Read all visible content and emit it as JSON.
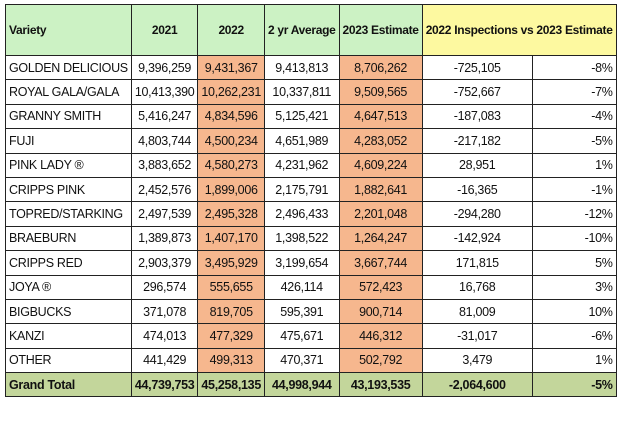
{
  "headers": {
    "variety": "Variety",
    "y2021": "2021",
    "y2022": "2022",
    "avg": "2 yr Average",
    "est2023": "2023 Estimate",
    "compare": "2022 Inspections vs 2023 Estimate"
  },
  "colors": {
    "header": "#ccf2c4",
    "compare_header": "#fdf9a0",
    "highlight": "#f6b78e",
    "total": "#c3d69b"
  },
  "rows": [
    {
      "variety": "GOLDEN DELICIOUS",
      "y2021": "9,396,259",
      "y2022": "9,431,367",
      "avg": "9,413,813",
      "est2023": "8,706,262",
      "diff": "-725,105",
      "pct": "-8%"
    },
    {
      "variety": "ROYAL GALA/GALA",
      "y2021": "10,413,390",
      "y2022": "10,262,231",
      "avg": "10,337,811",
      "est2023": "9,509,565",
      "diff": "-752,667",
      "pct": "-7%"
    },
    {
      "variety": "GRANNY SMITH",
      "y2021": "5,416,247",
      "y2022": "4,834,596",
      "avg": "5,125,421",
      "est2023": "4,647,513",
      "diff": "-187,083",
      "pct": "-4%"
    },
    {
      "variety": "FUJI",
      "y2021": "4,803,744",
      "y2022": "4,500,234",
      "avg": "4,651,989",
      "est2023": "4,283,052",
      "diff": "-217,182",
      "pct": "-5%"
    },
    {
      "variety": "PINK LADY ®",
      "y2021": "3,883,652",
      "y2022": "4,580,273",
      "avg": "4,231,962",
      "est2023": "4,609,224",
      "diff": "28,951",
      "pct": "1%"
    },
    {
      "variety": "CRIPPS PINK",
      "y2021": "2,452,576",
      "y2022": "1,899,006",
      "avg": "2,175,791",
      "est2023": "1,882,641",
      "diff": "-16,365",
      "pct": "-1%"
    },
    {
      "variety": "TOPRED/STARKING",
      "y2021": "2,497,539",
      "y2022": "2,495,328",
      "avg": "2,496,433",
      "est2023": "2,201,048",
      "diff": "-294,280",
      "pct": "-12%"
    },
    {
      "variety": "BRAEBURN",
      "y2021": "1,389,873",
      "y2022": "1,407,170",
      "avg": "1,398,522",
      "est2023": "1,264,247",
      "diff": "-142,924",
      "pct": "-10%"
    },
    {
      "variety": "CRIPPS RED",
      "y2021": "2,903,379",
      "y2022": "3,495,929",
      "avg": "3,199,654",
      "est2023": "3,667,744",
      "diff": "171,815",
      "pct": "5%"
    },
    {
      "variety": "JOYA ®",
      "y2021": "296,574",
      "y2022": "555,655",
      "avg": "426,114",
      "est2023": "572,423",
      "diff": "16,768",
      "pct": "3%"
    },
    {
      "variety": "BIGBUCKS",
      "y2021": "371,078",
      "y2022": "819,705",
      "avg": "595,391",
      "est2023": "900,714",
      "diff": "81,009",
      "pct": "10%"
    },
    {
      "variety": "KANZI",
      "y2021": "474,013",
      "y2022": "477,329",
      "avg": "475,671",
      "est2023": "446,312",
      "diff": "-31,017",
      "pct": "-6%"
    },
    {
      "variety": "OTHER",
      "y2021": "441,429",
      "y2022": "499,313",
      "avg": "470,371",
      "est2023": "502,792",
      "diff": "3,479",
      "pct": "1%"
    }
  ],
  "total": {
    "variety": "Grand Total",
    "y2021": "44,739,753",
    "y2022": "45,258,135",
    "avg": "44,998,944",
    "est2023": "43,193,535",
    "diff": "-2,064,600",
    "pct": "-5%"
  }
}
